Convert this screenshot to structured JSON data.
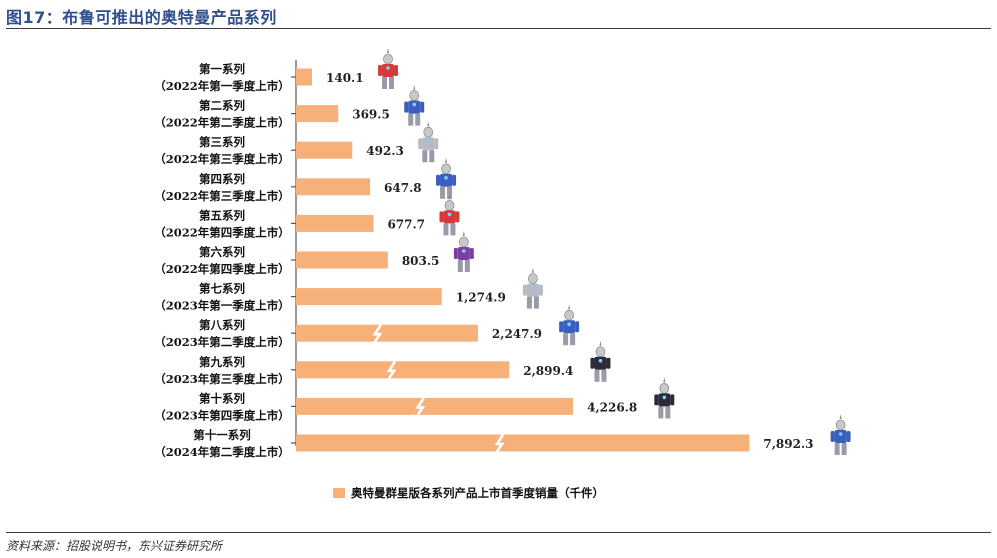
{
  "figure": {
    "title": "图17：布鲁可推出的奥特曼产品系列",
    "source": "资料来源：招股说明书，东兴证券研究所"
  },
  "chart_data": {
    "type": "bar",
    "orientation": "horizontal",
    "categories": [
      {
        "name": "第一系列",
        "launch": "（2022年第一季度上市）"
      },
      {
        "name": "第二系列",
        "launch": "（2022年第二季度上市）"
      },
      {
        "name": "第三系列",
        "launch": "（2022年第三季度上市）"
      },
      {
        "name": "第四系列",
        "launch": "（2022年第三季度上市）"
      },
      {
        "name": "第五系列",
        "launch": "（2022年第四季度上市）"
      },
      {
        "name": "第六系列",
        "launch": "（2022年第四季度上市）"
      },
      {
        "name": "第七系列",
        "launch": "（2023年第一季度上市）"
      },
      {
        "name": "第八系列",
        "launch": "（2023年第二季度上市）"
      },
      {
        "name": "第九系列",
        "launch": "（2023年第三季度上市）"
      },
      {
        "name": "第十系列",
        "launch": "（2023年第四季度上市）"
      },
      {
        "name": "第十一系列",
        "launch": "（2024年第二季度上市）"
      }
    ],
    "series": [
      {
        "name": "奥特曼群星版各系列产品上市首季度销量（千件）",
        "values": [
          140.1,
          369.5,
          492.3,
          647.8,
          677.7,
          803.5,
          1274.9,
          2247.9,
          2899.4,
          4226.8,
          7892.3
        ],
        "labels": [
          "140.1",
          "369.5",
          "492.3",
          "647.8",
          "677.7",
          "803.5",
          "1,274.9",
          "2,247.9",
          "2,899.4",
          "4,226.8",
          "7,892.3"
        ],
        "axis_break": [
          false,
          false,
          false,
          false,
          false,
          false,
          false,
          true,
          true,
          true,
          true
        ]
      }
    ],
    "legend_position": "bottom",
    "colors": {
      "bar": "#f6b07a",
      "figure_head": "#c8c8c8",
      "red": "#d63a3a",
      "blue": "#3a5fbf",
      "silver": "#b9b9c4"
    },
    "figure_icons": [
      "ultraman-red-icon",
      "ultraman-blue-icon",
      "ultraman-silver-icon",
      "ultraman-blue-icon",
      "ultraman-red-icon",
      "ultraman-purple-icon",
      "ultraman-silver-icon",
      "ultraman-blue-icon",
      "ultraman-dark-icon",
      "ultraman-dark-icon",
      "ultraman-blue-icon"
    ]
  }
}
